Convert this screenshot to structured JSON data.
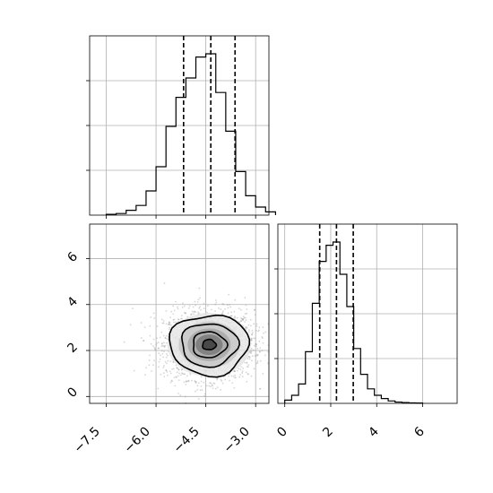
{
  "chart_data": [
    {
      "panel": "x-marginal",
      "type": "histogram",
      "x_range": [
        -8.0,
        -2.6
      ],
      "bins_x": [
        -7.5,
        -7.2,
        -6.9,
        -6.6,
        -6.3,
        -6.0,
        -5.7,
        -5.4,
        -5.1,
        -4.8,
        -4.5,
        -4.2,
        -3.9,
        -3.6,
        -3.3,
        -3.0,
        -2.7
      ],
      "counts": [
        0.005,
        0.01,
        0.03,
        0.06,
        0.15,
        0.3,
        0.55,
        0.73,
        0.85,
        0.98,
        1.0,
        0.76,
        0.52,
        0.27,
        0.12,
        0.05,
        0.02
      ],
      "quantile_lines": [
        -5.17,
        -4.35,
        -3.62
      ],
      "x_ticks": [
        -7.5,
        -6.0,
        -4.5,
        -3.0
      ],
      "y_ticks": [
        0.25,
        0.5,
        0.75
      ],
      "grid": true
    },
    {
      "panel": "joint-2d",
      "type": "scatter-contour",
      "x_range": [
        -8.0,
        -2.6
      ],
      "y_range": [
        -0.3,
        7.5
      ],
      "center": [
        -4.4,
        2.25
      ],
      "spread": [
        0.68,
        0.75
      ],
      "contour_radii": [
        0.3,
        0.75,
        1.25,
        1.75
      ],
      "x_ticks": [
        -7.5,
        -6.0,
        -4.5,
        -3.0
      ],
      "y_ticks": [
        0,
        2,
        4,
        6
      ],
      "grid": true
    },
    {
      "panel": "y-marginal",
      "type": "histogram",
      "x_range": [
        -0.3,
        7.5
      ],
      "bins_x": [
        0.0,
        0.3,
        0.6,
        0.9,
        1.2,
        1.5,
        1.8,
        2.1,
        2.4,
        2.7,
        3.0,
        3.3,
        3.6,
        3.9,
        4.2,
        4.5,
        4.8,
        5.1,
        5.4,
        5.7
      ],
      "counts": [
        0.02,
        0.05,
        0.12,
        0.32,
        0.62,
        0.88,
        0.98,
        1.0,
        0.8,
        0.6,
        0.34,
        0.18,
        0.09,
        0.05,
        0.03,
        0.015,
        0.008,
        0.005,
        0.003,
        0.002
      ],
      "quantile_lines": [
        1.52,
        2.25,
        2.98
      ],
      "x_ticks": [
        0,
        2,
        4,
        6
      ],
      "y_ticks": [
        0.25,
        0.5,
        0.75
      ],
      "grid": true
    }
  ],
  "tick_labels": {
    "x_joint": [
      "−7.5",
      "−6.0",
      "−4.5",
      "−3.0"
    ],
    "y_joint": [
      "0",
      "2",
      "4",
      "6"
    ],
    "x_marginal_y": [
      "0",
      "2",
      "4",
      "6"
    ]
  }
}
